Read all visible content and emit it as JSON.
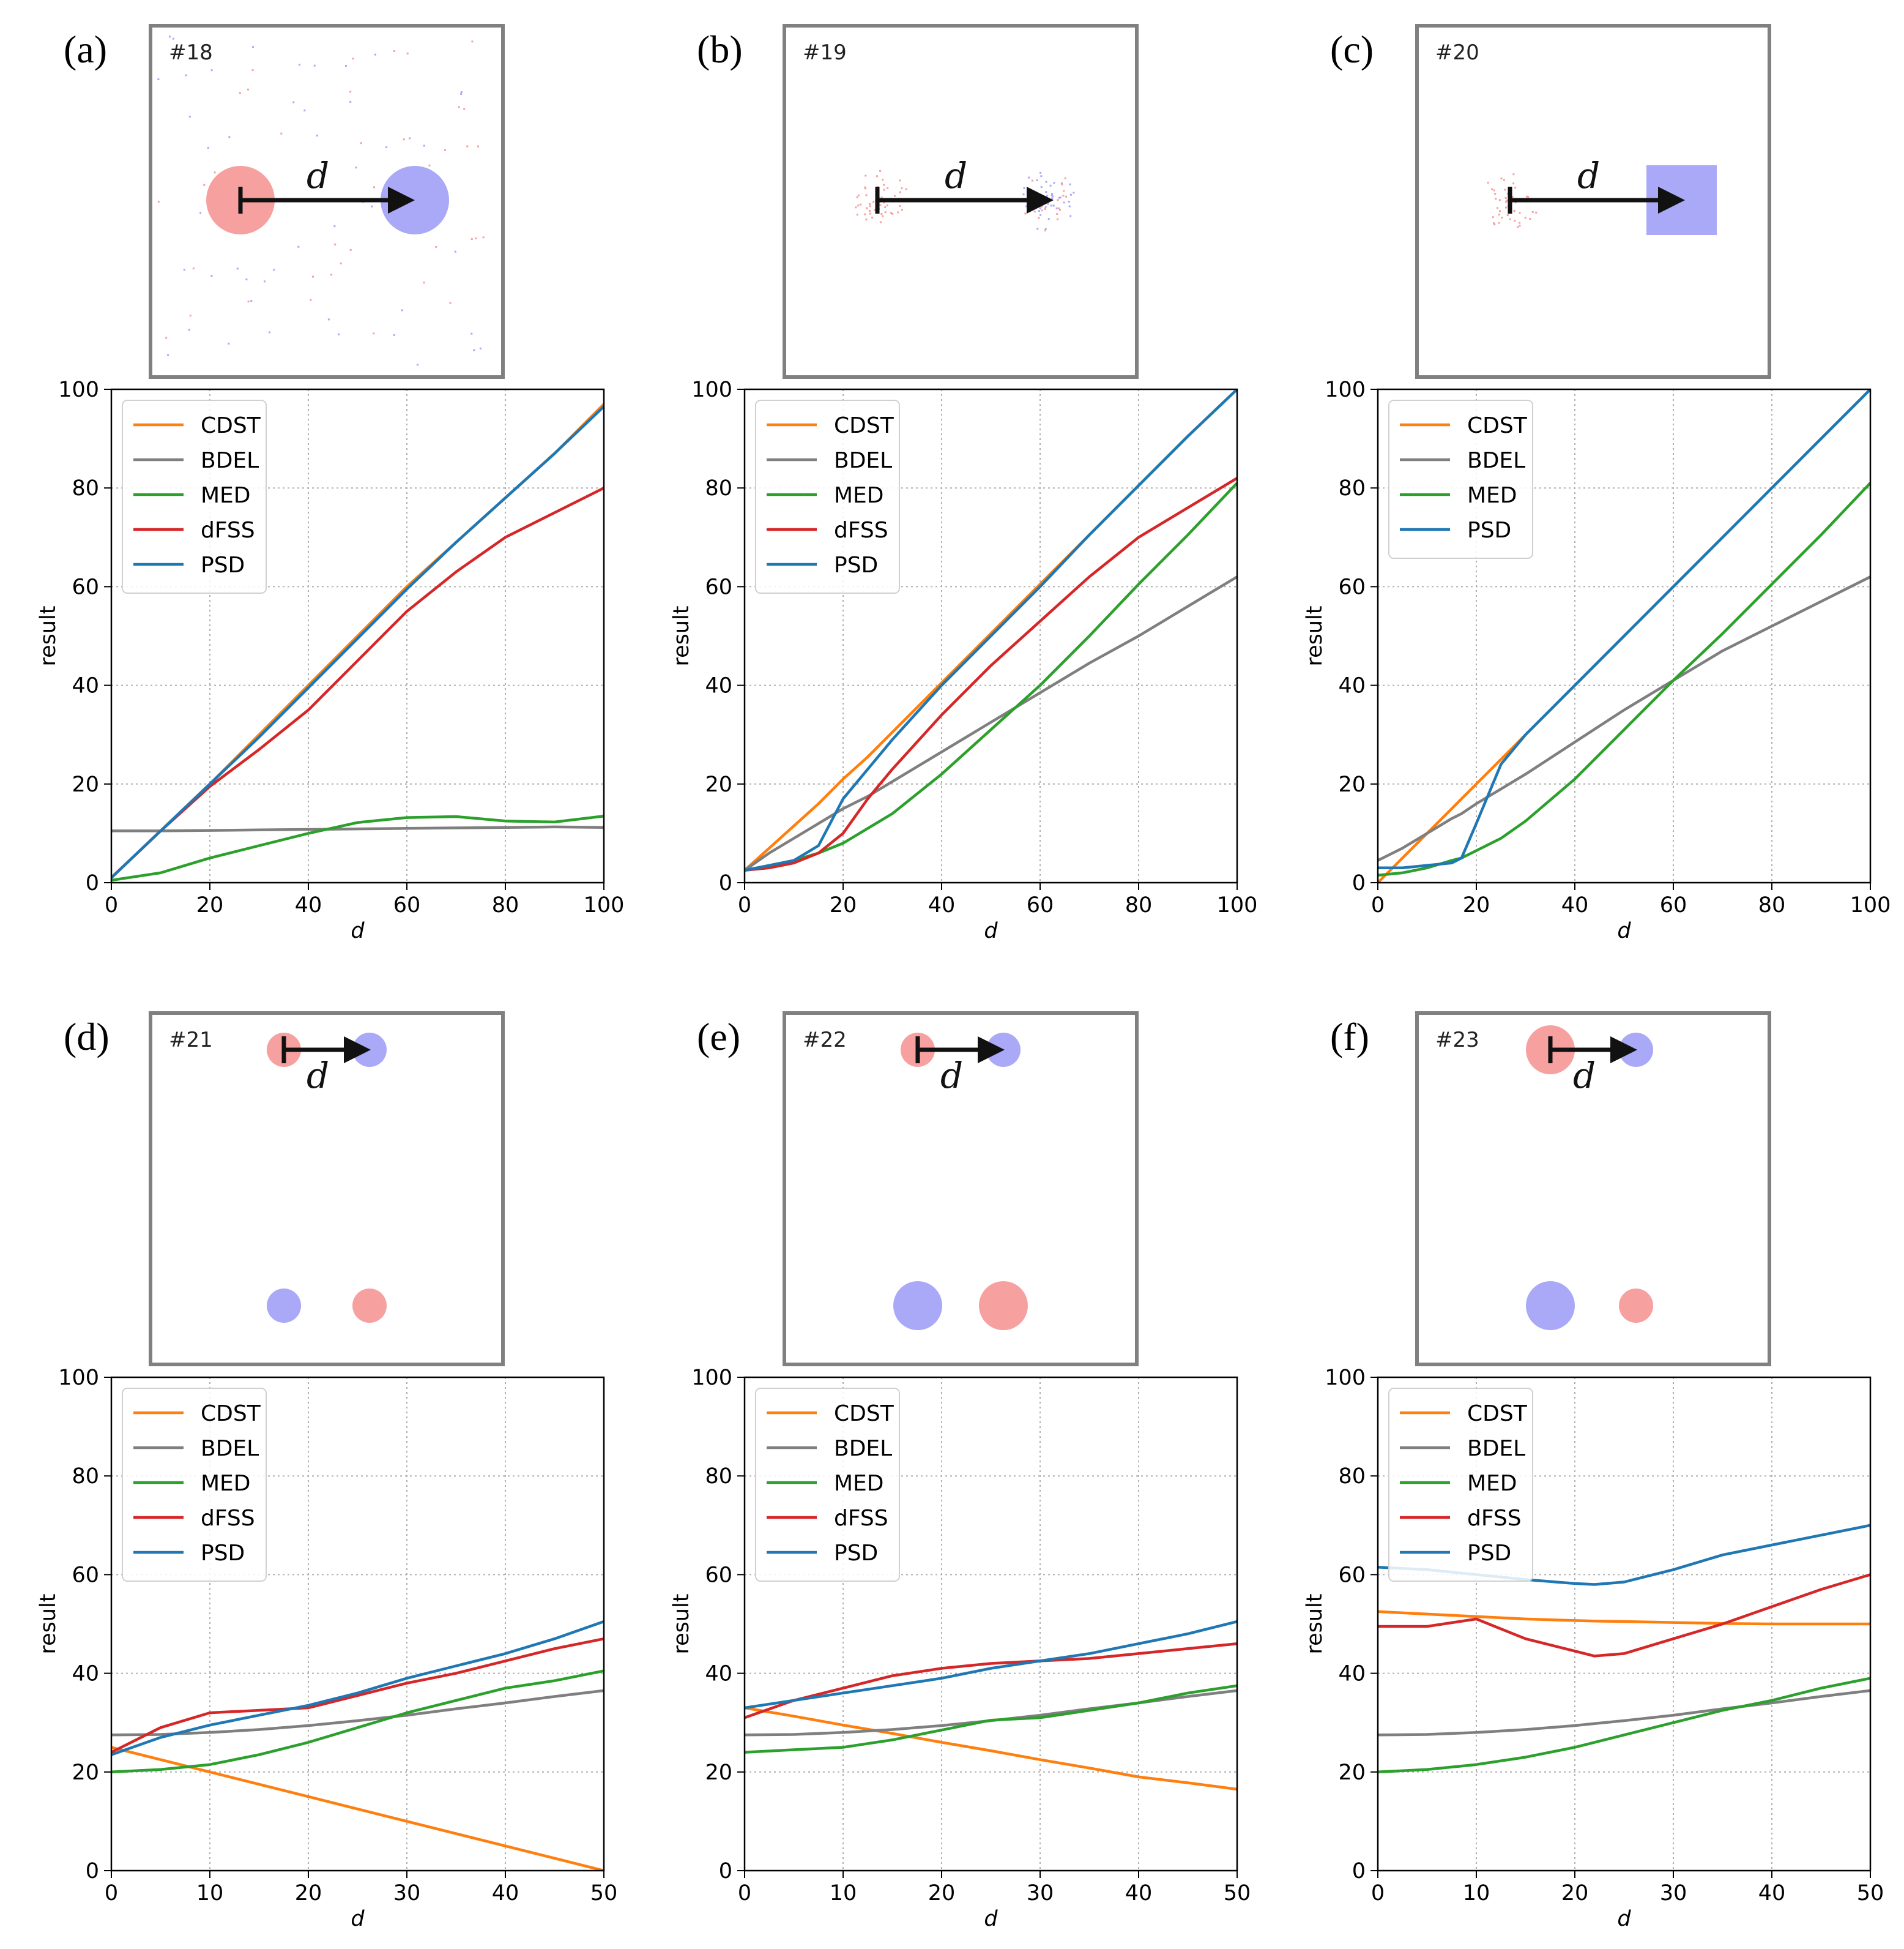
{
  "colors": {
    "CDST": "#ff7f0e",
    "BDEL": "#7f7f7f",
    "MED": "#2ca02c",
    "dFSS": "#d62728",
    "PSD": "#1f77b4",
    "obs_red": "#f7a0a0",
    "fcst_blue": "#a9a9f7",
    "frame": "#808080"
  },
  "panels": [
    {
      "label": "(a)",
      "tag": "#18",
      "distance_label": "d",
      "chart_data": {
        "type": "line",
        "xlabel": "d",
        "ylabel": "result",
        "xlim": [
          0,
          100
        ],
        "ylim": [
          0,
          100
        ],
        "xticks": [
          "0",
          "20",
          "40",
          "60",
          "80",
          "100"
        ],
        "yticks": [
          "0",
          "20",
          "40",
          "60",
          "80",
          "100"
        ],
        "grid": true,
        "legend": "top-left",
        "x": [
          0,
          10,
          20,
          30,
          40,
          50,
          60,
          70,
          80,
          90,
          100
        ],
        "series": [
          {
            "name": "CDST",
            "values": [
              1,
              10.5,
              20,
              30,
              40,
              50,
              60,
              69,
              78,
              87,
              97
            ]
          },
          {
            "name": "BDEL",
            "values": [
              10.5,
              10.5,
              10.6,
              10.7,
              10.8,
              10.9,
              11,
              11.1,
              11.2,
              11.3,
              11.2
            ]
          },
          {
            "name": "MED",
            "values": [
              0.5,
              2,
              5,
              7.5,
              10,
              12.2,
              13.2,
              13.4,
              12.5,
              12.3,
              13.5
            ]
          },
          {
            "name": "dFSS",
            "values": [
              1,
              10.5,
              19.5,
              27,
              35,
              45,
              55,
              63,
              70,
              75,
              80
            ]
          },
          {
            "name": "PSD",
            "values": [
              1,
              10.5,
              20,
              29.5,
              39.5,
              49.5,
              59.5,
              69,
              78,
              87,
              96.5
            ]
          }
        ]
      }
    },
    {
      "label": "(b)",
      "tag": "#19",
      "distance_label": "d",
      "chart_data": {
        "type": "line",
        "xlabel": "d",
        "ylabel": "result",
        "xlim": [
          0,
          100
        ],
        "ylim": [
          0,
          100
        ],
        "xticks": [
          "0",
          "20",
          "40",
          "60",
          "80",
          "100"
        ],
        "yticks": [
          "0",
          "20",
          "40",
          "60",
          "80",
          "100"
        ],
        "grid": true,
        "legend": "top-left",
        "x": [
          0,
          5,
          10,
          15,
          20,
          25,
          30,
          40,
          50,
          60,
          70,
          80,
          90,
          100
        ],
        "series": [
          {
            "name": "CDST",
            "values": [
              2.5,
              7,
              11.5,
              16,
              21,
              25.5,
              30.5,
              40.5,
              50.5,
              60.5,
              70.5,
              80.5,
              90.5,
              100
            ]
          },
          {
            "name": "BDEL",
            "values": [
              2.5,
              6,
              9,
              12,
              15,
              17.5,
              20.5,
              26.5,
              32.5,
              38.5,
              44.5,
              50,
              56,
              62
            ]
          },
          {
            "name": "MED",
            "values": [
              2.5,
              3.5,
              4.5,
              6,
              8,
              11,
              14,
              22,
              31,
              40,
              50,
              60.5,
              70.5,
              81
            ]
          },
          {
            "name": "dFSS",
            "values": [
              2.5,
              3,
              4,
              6,
              10,
              17,
              23,
              34,
              44,
              53,
              62,
              70,
              76,
              82
            ]
          },
          {
            "name": "PSD",
            "values": [
              2.5,
              3.5,
              4.5,
              7.5,
              17,
              23,
              29,
              40,
              50,
              60,
              70.5,
              80.5,
              90.5,
              100
            ]
          }
        ]
      }
    },
    {
      "label": "(c)",
      "tag": "#20",
      "distance_label": "d",
      "chart_data": {
        "type": "line",
        "xlabel": "d",
        "ylabel": "result",
        "xlim": [
          0,
          100
        ],
        "ylim": [
          0,
          100
        ],
        "xticks": [
          "0",
          "20",
          "40",
          "60",
          "80",
          "100"
        ],
        "yticks": [
          "0",
          "20",
          "40",
          "60",
          "80",
          "100"
        ],
        "grid": true,
        "legend": "top-left",
        "x": [
          0,
          5,
          10,
          15,
          17,
          20,
          25,
          30,
          40,
          50,
          60,
          70,
          80,
          90,
          100
        ],
        "series": [
          {
            "name": "CDST",
            "values": [
              0,
              5,
              10,
              15,
              17,
              20,
              25,
              30,
              40,
              50,
              60,
              70,
              80,
              90,
              100
            ]
          },
          {
            "name": "BDEL",
            "values": [
              4.5,
              7,
              10,
              13,
              14,
              16,
              19,
              22,
              28.5,
              35,
              41,
              47,
              52,
              57,
              62
            ]
          },
          {
            "name": "MED",
            "values": [
              1.5,
              2,
              3,
              4.5,
              5,
              6.5,
              9,
              12.5,
              21,
              31,
              41,
              50.5,
              60.5,
              70.5,
              81
            ]
          },
          {
            "name": "PSD",
            "values": [
              3,
              3,
              3.5,
              4,
              5,
              12,
              24,
              30,
              40,
              50,
              60,
              70,
              80,
              90,
              100
            ]
          }
        ]
      }
    },
    {
      "label": "(d)",
      "tag": "#21",
      "distance_label": "d",
      "chart_data": {
        "type": "line",
        "xlabel": "d",
        "ylabel": "result",
        "xlim": [
          0,
          50
        ],
        "ylim": [
          0,
          100
        ],
        "xticks": [
          "0",
          "10",
          "20",
          "30",
          "40",
          "50"
        ],
        "yticks": [
          "0",
          "20",
          "40",
          "60",
          "80",
          "100"
        ],
        "grid": true,
        "legend": "top-left",
        "x": [
          0,
          5,
          10,
          15,
          20,
          25,
          30,
          35,
          40,
          45,
          50
        ],
        "series": [
          {
            "name": "CDST",
            "values": [
              25,
              22.5,
              20,
              17.5,
              15,
              12.5,
              10,
              7.5,
              5,
              2.5,
              0
            ]
          },
          {
            "name": "BDEL",
            "values": [
              27.5,
              27.6,
              28,
              28.6,
              29.4,
              30.4,
              31.5,
              32.8,
              34,
              35.3,
              36.5
            ]
          },
          {
            "name": "MED",
            "values": [
              20,
              20.5,
              21.5,
              23.5,
              26,
              29,
              32,
              34.5,
              37,
              38.5,
              40.5
            ]
          },
          {
            "name": "dFSS",
            "values": [
              24,
              29,
              32,
              32.5,
              33,
              35.5,
              38,
              40,
              42.5,
              45,
              47
            ]
          },
          {
            "name": "PSD",
            "values": [
              23.5,
              27,
              29.5,
              31.5,
              33.5,
              36,
              39,
              41.5,
              44,
              47,
              50.5
            ]
          }
        ]
      }
    },
    {
      "label": "(e)",
      "tag": "#22",
      "distance_label": "d",
      "chart_data": {
        "type": "line",
        "xlabel": "d",
        "ylabel": "result",
        "xlim": [
          0,
          50
        ],
        "ylim": [
          0,
          100
        ],
        "xticks": [
          "0",
          "10",
          "20",
          "30",
          "40",
          "50"
        ],
        "yticks": [
          "0",
          "20",
          "40",
          "60",
          "80",
          "100"
        ],
        "grid": true,
        "legend": "top-left",
        "x": [
          0,
          5,
          10,
          15,
          20,
          25,
          30,
          35,
          40,
          45,
          50
        ],
        "series": [
          {
            "name": "CDST",
            "values": [
              33,
              31.3,
              29.5,
              27.8,
              26,
              24.3,
              22.5,
              20.8,
              19,
              17.8,
              16.5
            ]
          },
          {
            "name": "BDEL",
            "values": [
              27.5,
              27.6,
              28,
              28.6,
              29.4,
              30.4,
              31.5,
              32.8,
              34,
              35.3,
              36.5
            ]
          },
          {
            "name": "MED",
            "values": [
              24,
              24.5,
              25,
              26.5,
              28.5,
              30.5,
              31,
              32.5,
              34,
              36,
              37.5
            ]
          },
          {
            "name": "dFSS",
            "values": [
              31,
              34.5,
              37,
              39.5,
              41,
              42,
              42.5,
              43,
              44,
              45,
              46
            ]
          },
          {
            "name": "PSD",
            "values": [
              33,
              34.5,
              36,
              37.5,
              39,
              41,
              42.5,
              44,
              46,
              48,
              50.5
            ]
          }
        ]
      }
    },
    {
      "label": "(f)",
      "tag": "#23",
      "distance_label": "d",
      "chart_data": {
        "type": "line",
        "xlabel": "d",
        "ylabel": "result",
        "xlim": [
          0,
          50
        ],
        "ylim": [
          0,
          100
        ],
        "xticks": [
          "0",
          "10",
          "20",
          "30",
          "40",
          "50"
        ],
        "yticks": [
          "0",
          "20",
          "40",
          "60",
          "80",
          "100"
        ],
        "grid": true,
        "legend": "top-left",
        "x": [
          0,
          5,
          10,
          15,
          20,
          22,
          25,
          30,
          35,
          40,
          45,
          50
        ],
        "series": [
          {
            "name": "CDST",
            "values": [
              52.5,
              52,
              51.5,
              51,
              50.7,
              50.6,
              50.5,
              50.3,
              50.1,
              50,
              50,
              50
            ]
          },
          {
            "name": "BDEL",
            "values": [
              27.5,
              27.6,
              28,
              28.6,
              29.4,
              29.8,
              30.4,
              31.5,
              32.8,
              34,
              35.3,
              36.5
            ]
          },
          {
            "name": "MED",
            "values": [
              20,
              20.5,
              21.5,
              23,
              25,
              26,
              27.5,
              30,
              32.5,
              34.5,
              37,
              39
            ]
          },
          {
            "name": "dFSS",
            "values": [
              49.5,
              49.5,
              51,
              47,
              44.5,
              43.5,
              44,
              47,
              50,
              53.5,
              57,
              60
            ]
          },
          {
            "name": "PSD",
            "values": [
              61.5,
              61,
              60,
              59,
              58.2,
              58,
              58.5,
              61,
              64,
              66,
              68,
              70
            ]
          }
        ]
      }
    }
  ]
}
